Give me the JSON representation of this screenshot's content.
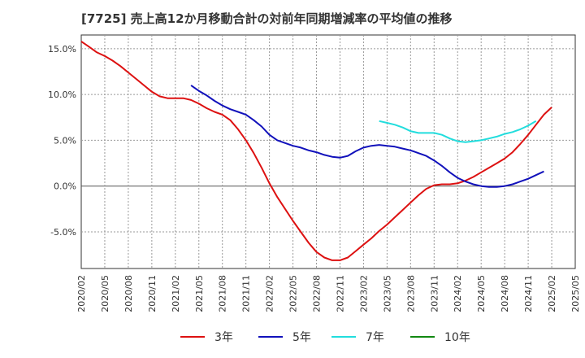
{
  "chart_data": {
    "type": "line",
    "title": "[7725]  売上高12か月移動合計の対前年同期増減率の平均値の推移",
    "xlabel": "",
    "ylabel": "",
    "ylim": [
      -9.0,
      16.5
    ],
    "y_ticks": [
      15.0,
      10.0,
      5.0,
      0.0,
      -5.0
    ],
    "y_tick_labels": [
      "15.0%",
      "10.0%",
      "5.0%",
      "0.0%",
      "-5.0%"
    ],
    "x_tick_labels": [
      "2020/02",
      "2020/05",
      "2020/08",
      "2020/11",
      "2021/02",
      "2021/05",
      "2021/08",
      "2021/11",
      "2022/02",
      "2022/05",
      "2022/08",
      "2022/11",
      "2023/02",
      "2023/05",
      "2023/08",
      "2023/11",
      "2024/02",
      "2024/05",
      "2024/08",
      "2024/11",
      "2025/02",
      "2025/05"
    ],
    "grid": true,
    "legend_position": "bottom",
    "colors": {
      "3年": "#dd1111",
      "5年": "#1111bb",
      "7年": "#22dddd",
      "10年": "#118811"
    },
    "series": [
      {
        "name": "3年",
        "start": "2020/02",
        "values": [
          15.8,
          15.2,
          14.6,
          14.2,
          13.7,
          13.1,
          12.4,
          11.7,
          11.0,
          10.3,
          9.8,
          9.6,
          9.6,
          9.6,
          9.4,
          9.0,
          8.5,
          8.1,
          7.8,
          7.2,
          6.2,
          5.0,
          3.6,
          2.0,
          0.3,
          -1.2,
          -2.5,
          -3.8,
          -5.0,
          -6.2,
          -7.2,
          -7.8,
          -8.1,
          -8.1,
          -7.8,
          -7.1,
          -6.4,
          -5.7,
          -4.9,
          -4.2,
          -3.4,
          -2.6,
          -1.8,
          -1.0,
          -0.3,
          0.1,
          0.2,
          0.2,
          0.3,
          0.6,
          1.0,
          1.5,
          2.0,
          2.5,
          3.0,
          3.7,
          4.6,
          5.6,
          6.7,
          7.8,
          8.6
        ]
      },
      {
        "name": "5年",
        "start": "2021/04",
        "values": [
          11.0,
          10.4,
          9.9,
          9.3,
          8.8,
          8.4,
          8.1,
          7.8,
          7.2,
          6.5,
          5.6,
          5.0,
          4.7,
          4.4,
          4.2,
          3.9,
          3.7,
          3.4,
          3.2,
          3.1,
          3.3,
          3.8,
          4.2,
          4.4,
          4.5,
          4.4,
          4.3,
          4.1,
          3.9,
          3.6,
          3.3,
          2.8,
          2.2,
          1.5,
          0.9,
          0.5,
          0.2,
          0.0,
          -0.1,
          -0.1,
          0.0,
          0.2,
          0.5,
          0.8,
          1.2,
          1.6
        ]
      },
      {
        "name": "7年",
        "start": "2023/04",
        "values": [
          7.1,
          6.9,
          6.7,
          6.4,
          6.0,
          5.8,
          5.8,
          5.8,
          5.6,
          5.2,
          4.9,
          4.8,
          4.9,
          5.0,
          5.2,
          5.4,
          5.7,
          5.9,
          6.2,
          6.6,
          7.1
        ]
      },
      {
        "name": "10年",
        "start": "2025/02",
        "values": []
      }
    ]
  }
}
